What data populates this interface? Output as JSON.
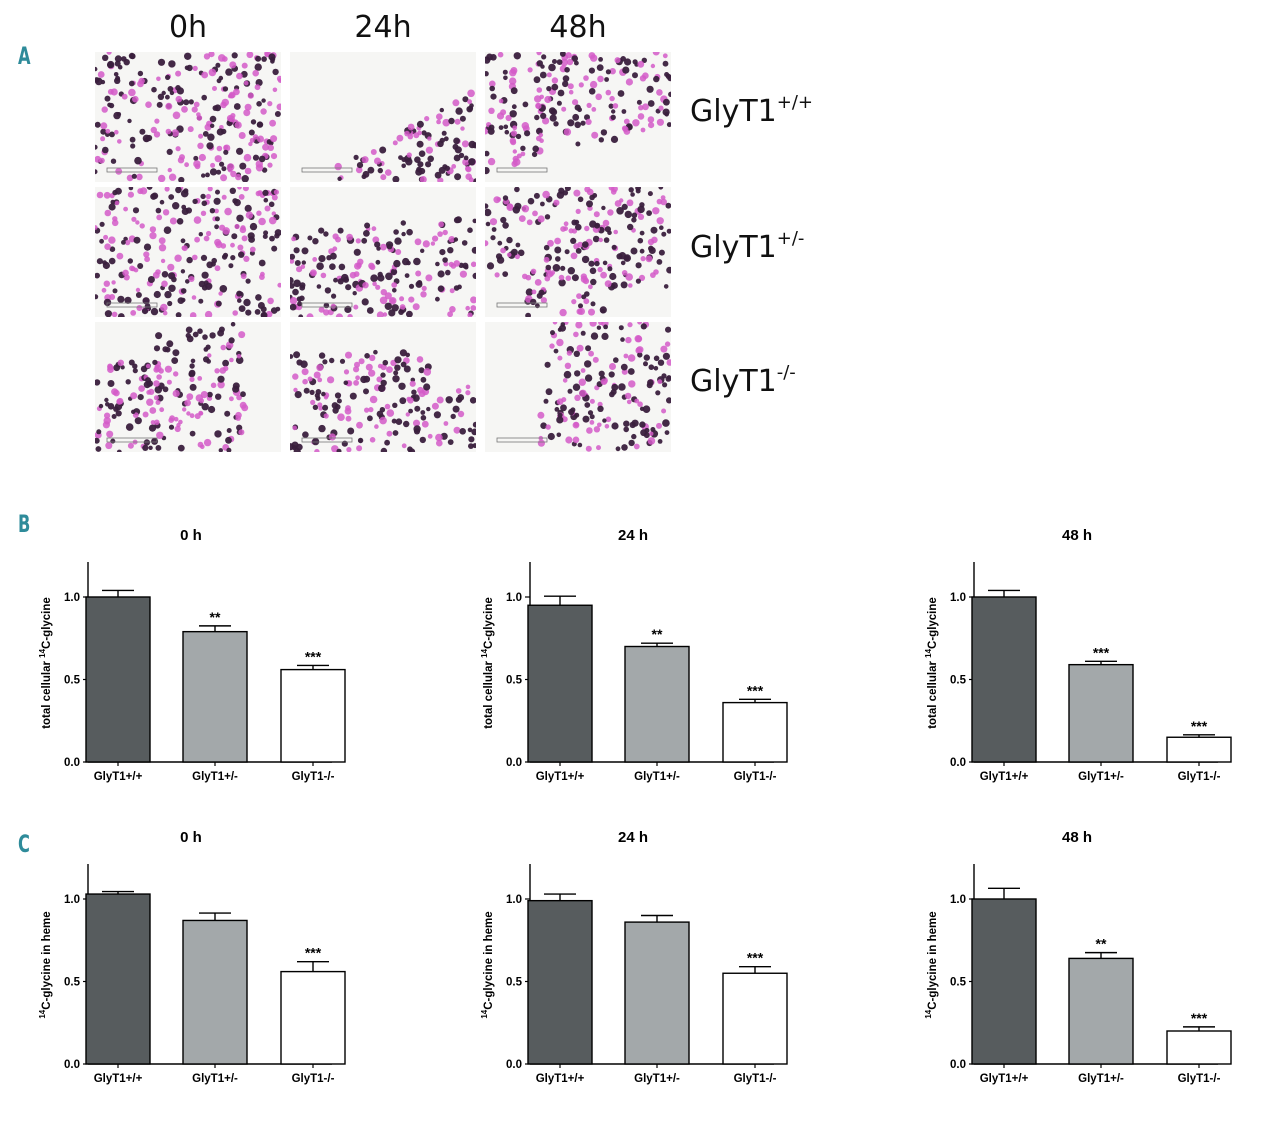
{
  "panel_letters": {
    "a": "A",
    "b": "B",
    "c": "C"
  },
  "micrographs": {
    "time_headers": [
      "0h",
      "24h",
      "48h"
    ],
    "genotypes": [
      {
        "base": "GlyT1",
        "sup": "+/+"
      },
      {
        "base": "GlyT1",
        "sup": "+/-"
      },
      {
        "base": "GlyT1",
        "sup": "-/-"
      }
    ],
    "colors": {
      "dark_cell": "#3a1f3d",
      "pink_cell": "#d35bc8",
      "background": "#f6f6f4"
    }
  },
  "colors": {
    "gly_pp": "#575c5e",
    "gly_pm": "#a3a8aa",
    "gly_mm": "#ffffff",
    "axis": "#000000"
  },
  "chart_data": [
    {
      "id": "B-0h",
      "type": "bar",
      "title": "0 h",
      "ylabel_pre": "total cellular ",
      "ylabel_sup": "14",
      "ylabel_post": "C-glycine",
      "categories": [
        "GlyT1+/+",
        "GlyT1+/-",
        "GlyT1-/-"
      ],
      "values": [
        1.0,
        0.79,
        0.56
      ],
      "errors": [
        0.04,
        0.035,
        0.025
      ],
      "significance": [
        "",
        "**",
        "***"
      ],
      "ylim": [
        0,
        1.2
      ],
      "yticks": [
        "0.0",
        "0.5",
        "1.0"
      ]
    },
    {
      "id": "B-24h",
      "type": "bar",
      "title": "24 h",
      "ylabel_pre": "total cellular ",
      "ylabel_sup": "14",
      "ylabel_post": "C-glycine",
      "categories": [
        "GlyT1+/+",
        "GlyT1+/-",
        "GlyT1-/-"
      ],
      "values": [
        0.95,
        0.7,
        0.36
      ],
      "errors": [
        0.055,
        0.02,
        0.02
      ],
      "significance": [
        "",
        "**",
        "***"
      ],
      "ylim": [
        0,
        1.2
      ],
      "yticks": [
        "0.0",
        "0.5",
        "1.0"
      ]
    },
    {
      "id": "B-48h",
      "type": "bar",
      "title": "48 h",
      "ylabel_pre": "total cellular ",
      "ylabel_sup": "14",
      "ylabel_post": "C-glycine",
      "categories": [
        "GlyT1+/+",
        "GlyT1+/-",
        "GlyT1-/-"
      ],
      "values": [
        1.0,
        0.59,
        0.15
      ],
      "errors": [
        0.04,
        0.02,
        0.015
      ],
      "significance": [
        "",
        "***",
        "***"
      ],
      "ylim": [
        0,
        1.2
      ],
      "yticks": [
        "0.0",
        "0.5",
        "1.0"
      ]
    },
    {
      "id": "C-0h",
      "type": "bar",
      "title": "0 h",
      "ylabel_pre": "",
      "ylabel_sup": "14",
      "ylabel_post": "C-glycine in heme",
      "categories": [
        "GlyT1+/+",
        "GlyT1+/-",
        "GlyT1-/-"
      ],
      "values": [
        1.03,
        0.87,
        0.56
      ],
      "errors": [
        0.015,
        0.045,
        0.06
      ],
      "significance": [
        "",
        "",
        "***"
      ],
      "ylim": [
        0,
        1.2
      ],
      "yticks": [
        "0.0",
        "0.5",
        "1.0"
      ]
    },
    {
      "id": "C-24h",
      "type": "bar",
      "title": "24 h",
      "ylabel_pre": "",
      "ylabel_sup": "14",
      "ylabel_post": "C-glycine in heme",
      "categories": [
        "GlyT1+/+",
        "GlyT1+/-",
        "GlyT1-/-"
      ],
      "values": [
        0.99,
        0.86,
        0.55
      ],
      "errors": [
        0.04,
        0.04,
        0.04
      ],
      "significance": [
        "",
        "",
        "***"
      ],
      "ylim": [
        0,
        1.2
      ],
      "yticks": [
        "0.0",
        "0.5",
        "1.0"
      ]
    },
    {
      "id": "C-48h",
      "type": "bar",
      "title": "48 h",
      "ylabel_pre": "",
      "ylabel_sup": "14",
      "ylabel_post": "C-glycine in heme",
      "categories": [
        "GlyT1+/+",
        "GlyT1+/-",
        "GlyT1-/-"
      ],
      "values": [
        1.0,
        0.64,
        0.2
      ],
      "errors": [
        0.065,
        0.035,
        0.025
      ],
      "significance": [
        "",
        "**",
        "***"
      ],
      "ylim": [
        0,
        1.2
      ],
      "yticks": [
        "0.0",
        "0.5",
        "1.0"
      ]
    }
  ]
}
